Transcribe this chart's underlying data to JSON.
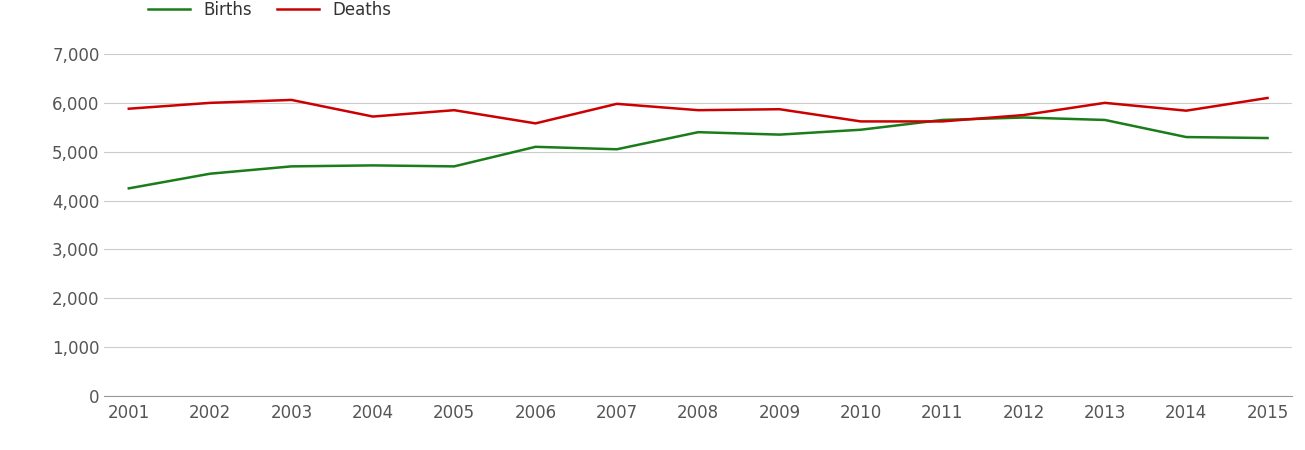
{
  "years": [
    2001,
    2002,
    2003,
    2004,
    2005,
    2006,
    2007,
    2008,
    2009,
    2010,
    2011,
    2012,
    2013,
    2014,
    2015
  ],
  "births": [
    4250,
    4550,
    4700,
    4720,
    4700,
    5100,
    5050,
    5400,
    5350,
    5450,
    5650,
    5700,
    5650,
    5300,
    5280
  ],
  "deaths": [
    5880,
    6000,
    6060,
    5720,
    5850,
    5580,
    5980,
    5850,
    5870,
    5620,
    5620,
    5750,
    6000,
    5840,
    6100
  ],
  "births_color": "#1a7c1a",
  "deaths_color": "#cc0000",
  "background_color": "#ffffff",
  "grid_color": "#cccccc",
  "ylim": [
    0,
    7000
  ],
  "yticks": [
    0,
    1000,
    2000,
    3000,
    4000,
    5000,
    6000,
    7000
  ],
  "legend_births": "Births",
  "legend_deaths": "Deaths",
  "line_width": 1.8,
  "tick_fontsize": 12,
  "tick_color": "#555555"
}
